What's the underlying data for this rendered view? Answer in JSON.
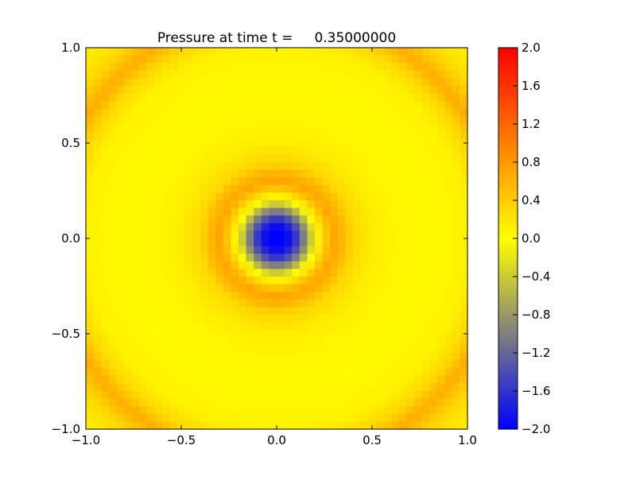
{
  "chart_data": {
    "type": "heatmap",
    "title": "Pressure at time t =     0.35000000",
    "xlabel": "",
    "ylabel": "",
    "xlim": [
      -1.0,
      1.0
    ],
    "ylim": [
      -1.0,
      1.0
    ],
    "grid_size": [
      50,
      50
    ],
    "x_ticks": [
      "−1.0",
      "−0.5",
      "0.0",
      "0.5",
      "1.0"
    ],
    "x_tick_values": [
      -1.0,
      -0.5,
      0.0,
      0.5,
      1.0
    ],
    "y_ticks": [
      "−1.0",
      "−0.5",
      "0.0",
      "0.5",
      "1.0"
    ],
    "y_tick_values": [
      -1.0,
      -0.5,
      0.0,
      0.5,
      1.0
    ],
    "field_description": "radially symmetric pressure about origin; value vs radius",
    "radial_profile": {
      "r": [
        0.0,
        0.05,
        0.1,
        0.15,
        0.2,
        0.25,
        0.3,
        0.35,
        0.4,
        0.5,
        0.6,
        0.8,
        1.0,
        1.1,
        1.18,
        1.28,
        1.42
      ],
      "value": [
        -2.0,
        -2.0,
        -1.6,
        -0.9,
        -0.1,
        0.4,
        0.7,
        0.55,
        0.3,
        0.15,
        0.08,
        0.05,
        0.1,
        0.3,
        0.65,
        0.3,
        0.1
      ]
    },
    "colorbar": {
      "vmin": -2.0,
      "vmax": 2.0,
      "colors": [
        "#0000ff",
        "#ffff00",
        "#ff0000"
      ],
      "color_stops": [
        -2.0,
        0.0,
        2.0
      ],
      "tick_values": [
        2.0,
        1.6,
        1.2,
        0.8,
        0.4,
        0.0,
        -0.4,
        -0.8,
        -1.2,
        -1.6,
        -2.0
      ],
      "tick_labels": [
        "2.0",
        "1.6",
        "1.2",
        "0.8",
        "0.4",
        "0.0",
        "−0.4",
        "−0.8",
        "−1.2",
        "−1.6",
        "−2.0"
      ]
    }
  }
}
